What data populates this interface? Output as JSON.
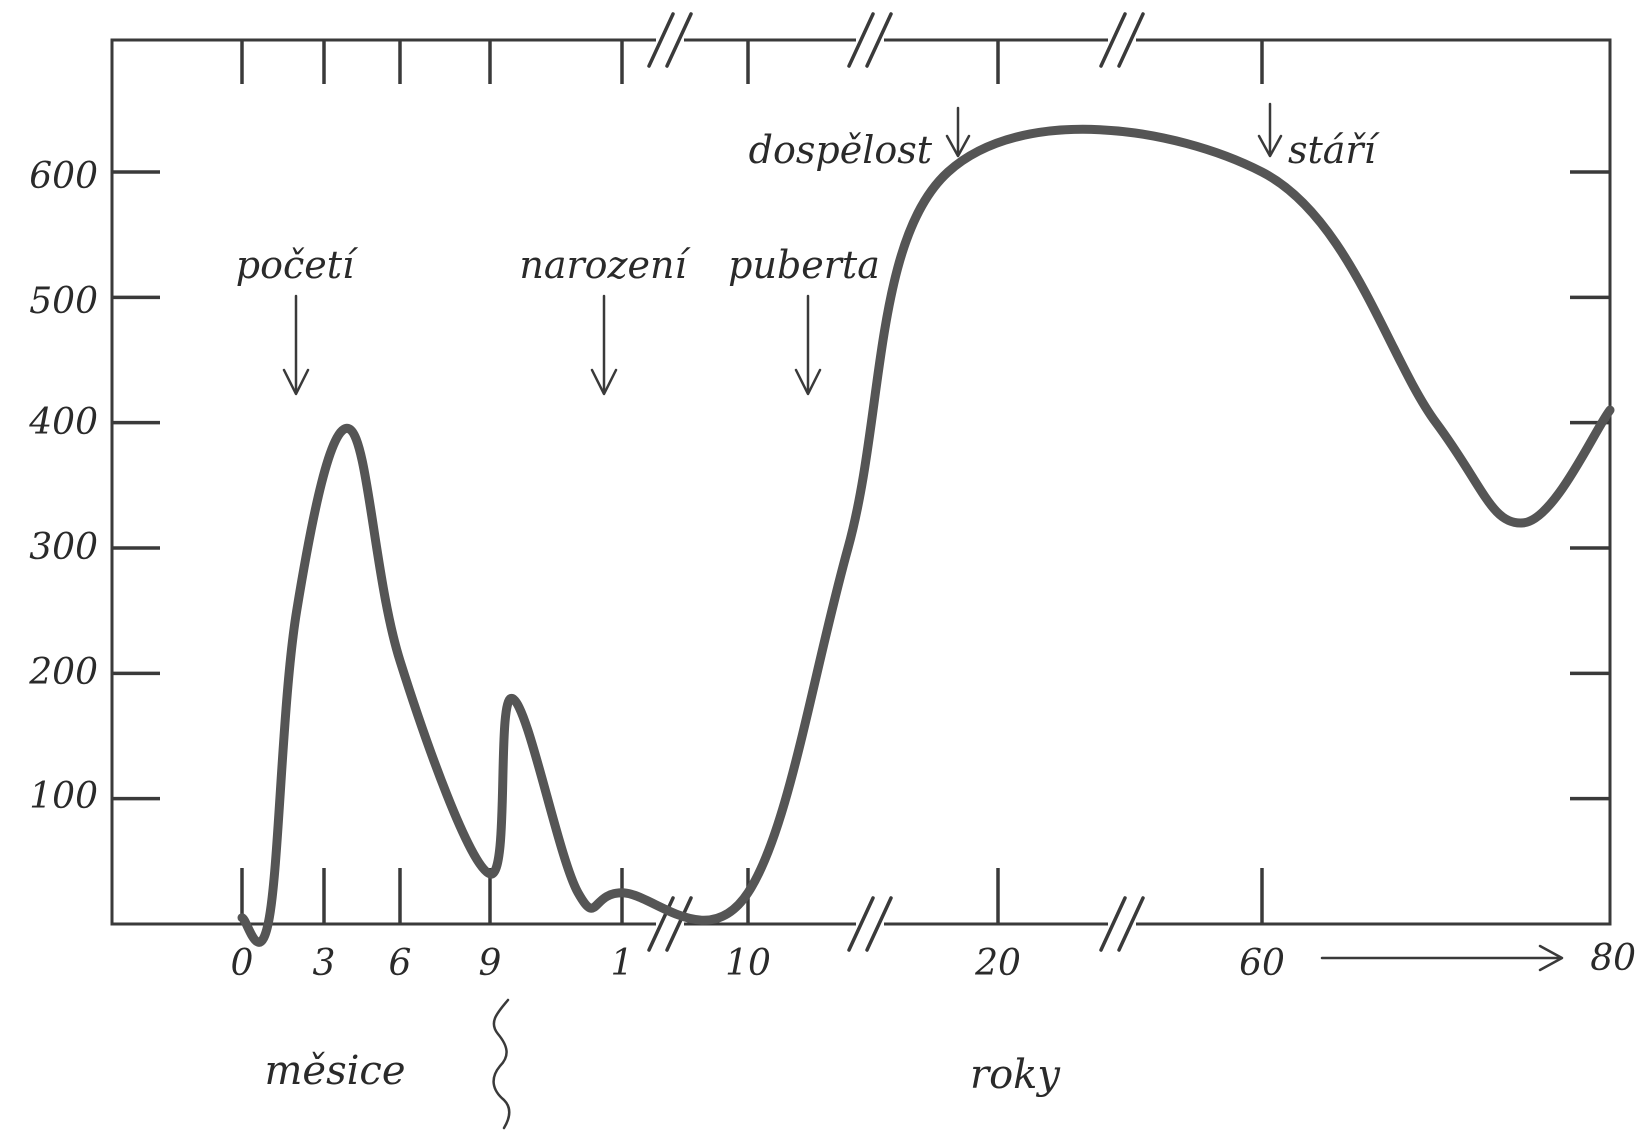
{
  "chart_data": {
    "type": "line",
    "title": "",
    "xlabel": "",
    "ylabel": "",
    "ylim": [
      0,
      600
    ],
    "y_ticks": [
      "100",
      "200",
      "300",
      "400",
      "500",
      "600"
    ],
    "y_tick_values": [
      100,
      200,
      300,
      400,
      500,
      600
    ],
    "x_tick_labels": [
      "0",
      "3",
      "6",
      "9",
      "1",
      "10",
      "20",
      "60",
      "80"
    ],
    "x_unit_labels": {
      "months": "měsice",
      "years": "roky"
    },
    "grid": false,
    "annotations": [
      "početí",
      "narození",
      "puberta",
      "dospělost",
      "stáří"
    ],
    "series": [
      {
        "points": [
          {
            "x": "0 měsice",
            "y": 5
          },
          {
            "x": "1 měsice",
            "y": 5
          },
          {
            "x": "2 měsice",
            "y": 250
          },
          {
            "x": "4 měsice",
            "y": 395
          },
          {
            "x": "6 měsice",
            "y": 210
          },
          {
            "x": "9 měsice",
            "y": 40
          },
          {
            "x": "9.5 měsice",
            "y": 180
          },
          {
            "x": "11 měsice",
            "y": 25
          },
          {
            "x": "1 roky",
            "y": 25
          },
          {
            "x": "10 roky",
            "y": 25
          },
          {
            "x": "14 roky",
            "y": 300
          },
          {
            "x": "18 roky",
            "y": 600
          },
          {
            "x": "60 roky",
            "y": 600
          },
          {
            "x": "70 roky",
            "y": 400
          },
          {
            "x": "75 roky",
            "y": 320
          },
          {
            "x": "80 roky",
            "y": 410
          }
        ]
      }
    ]
  }
}
